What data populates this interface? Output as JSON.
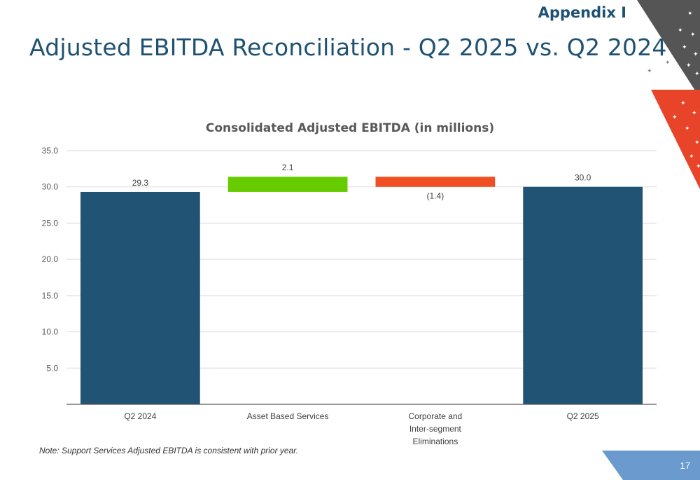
{
  "header": {
    "appendix_label": "Appendix I",
    "title": "Adjusted EBITDA Reconciliation - Q2 2025 vs. Q2 2024"
  },
  "footer": {
    "note": "Note: Support Services Adjusted EBITDA is consistent with prior year.",
    "page_number": "17"
  },
  "colors": {
    "title": "#1f5173",
    "total_bar": "#205374",
    "increase_bar": "#66cc00",
    "decrease_bar": "#f04e23",
    "footer_band": "#6b9bce"
  },
  "chart_data": {
    "type": "bar",
    "subtype": "waterfall",
    "title": "Consolidated Adjusted EBITDA (in millions)",
    "categories": [
      [
        "Q2 2024"
      ],
      [
        "Asset Based Services"
      ],
      [
        "Corporate and",
        "Inter-segment",
        "Eliminations"
      ],
      [
        "Q2 2025"
      ]
    ],
    "values": [
      29.3,
      2.1,
      -1.4,
      30.0
    ],
    "kinds": [
      "total",
      "increase",
      "decrease",
      "total"
    ],
    "data_labels": [
      "29.3",
      "2.1",
      "(1.4)",
      "30.0"
    ],
    "y_ticks": [
      "5.0",
      "10.0",
      "15.0",
      "20.0",
      "25.0",
      "30.0",
      "35.0"
    ],
    "ylim": [
      0,
      35
    ],
    "grid": true,
    "legend": "none"
  }
}
